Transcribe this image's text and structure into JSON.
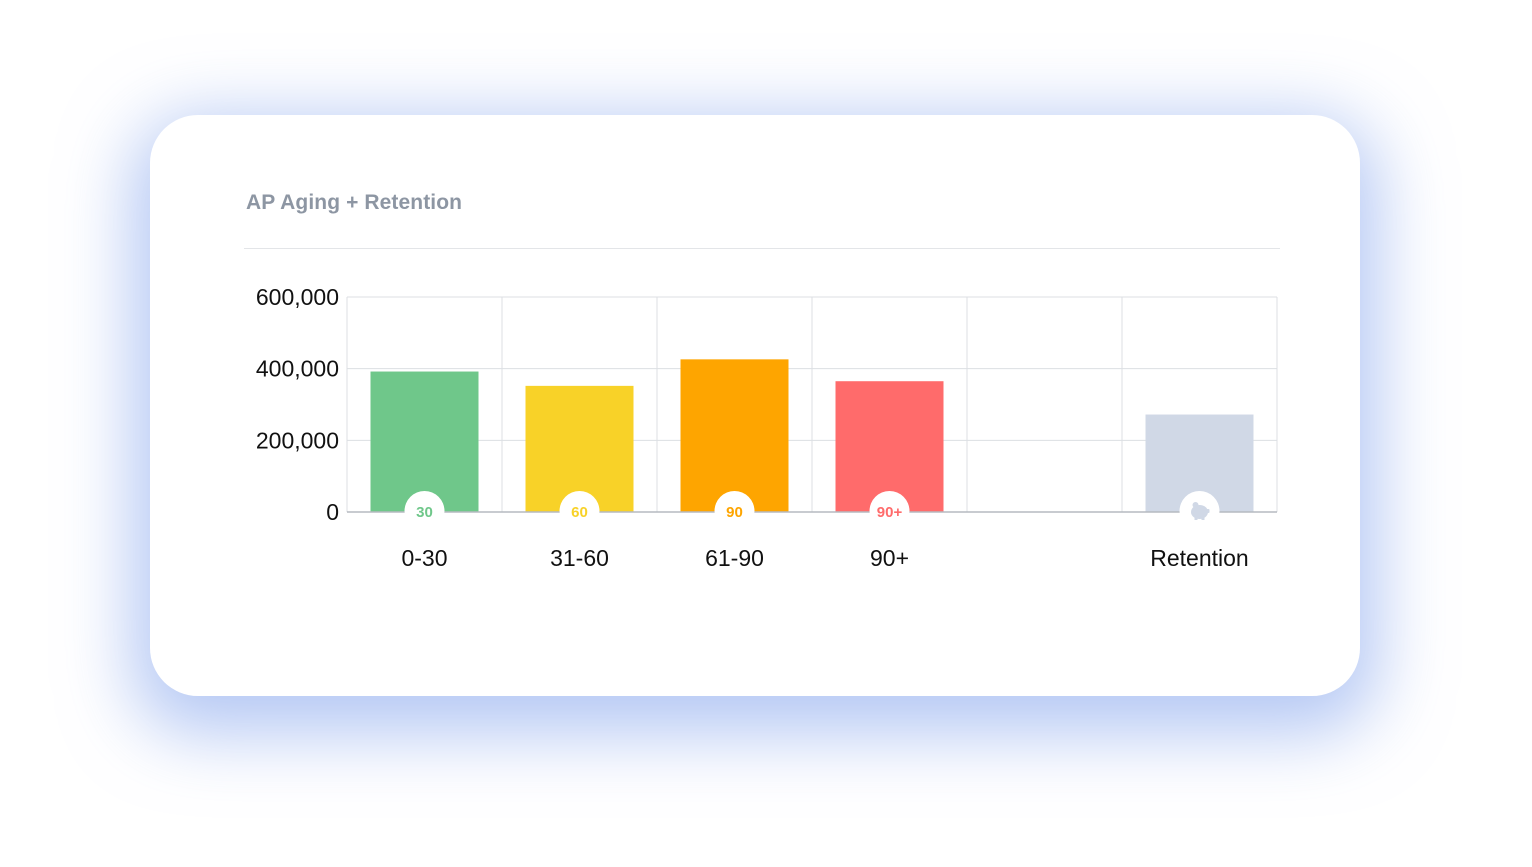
{
  "card": {
    "title": "AP Aging + Retention"
  },
  "chart_data": {
    "type": "bar",
    "title": "AP Aging + Retention",
    "categories": [
      "0-30",
      "31-60",
      "61-90",
      "90+",
      "",
      "Retention"
    ],
    "values": [
      392000,
      352000,
      426000,
      365000,
      null,
      272000
    ],
    "colors": [
      "#6fc78a",
      "#f8d228",
      "#fea500",
      "#ff6b6b",
      "",
      "#d0d8e6"
    ],
    "badges": [
      {
        "label": "30",
        "color": "#6fc78a"
      },
      {
        "label": "60",
        "color": "#f8d228"
      },
      {
        "label": "90",
        "color": "#fea500"
      },
      {
        "label": "90+",
        "color": "#ff6b6b"
      },
      null,
      {
        "icon": "piggy-bank-icon",
        "color": "#d0d8e6"
      }
    ],
    "ylim": [
      0,
      600000
    ],
    "yticks": [
      0,
      200000,
      400000,
      600000
    ],
    "ytick_labels": [
      "0",
      "200,000",
      "400,000",
      "600,000"
    ],
    "grid": true,
    "xlabel": "",
    "ylabel": ""
  }
}
